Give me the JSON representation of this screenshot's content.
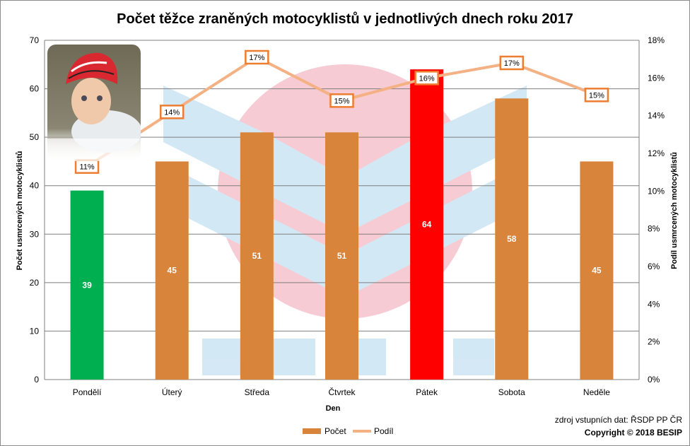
{
  "chart_data": {
    "type": "bar",
    "title": "Počet těžce zraněných motocyklistů v jednotlivých dnech roku 2017",
    "xlabel": "Den",
    "ylabel": "Počet usmrcených motocyklistů",
    "y2label": "Podíl usmrcených motocyklistů",
    "ylim": [
      0,
      70
    ],
    "yticks": [
      0,
      10,
      20,
      30,
      40,
      50,
      60,
      70
    ],
    "y2lim": [
      0,
      18
    ],
    "y2ticks": [
      "0%",
      "2%",
      "4%",
      "6%",
      "8%",
      "10%",
      "12%",
      "14%",
      "16%",
      "18%"
    ],
    "grid": true,
    "legend_position": "bottom",
    "categories": [
      "Pondělí",
      "Úterý",
      "Středa",
      "Čtvrtek",
      "Pátek",
      "Sobota",
      "Neděle"
    ],
    "series": [
      {
        "name": "Počet",
        "type": "bar",
        "axis": "left",
        "values": [
          39,
          45,
          51,
          51,
          64,
          58,
          45
        ],
        "labels": [
          "39",
          "45",
          "51",
          "51",
          "64",
          "58",
          "45"
        ],
        "color": "#d9843b",
        "point_colors": [
          "#00b050",
          "#d9843b",
          "#d9843b",
          "#d9843b",
          "#ff0000",
          "#d9843b",
          "#d9843b"
        ]
      },
      {
        "name": "Podíl",
        "type": "line",
        "axis": "right",
        "values": [
          11.3,
          14.2,
          17.1,
          14.8,
          16.0,
          16.8,
          15.1
        ],
        "labels": [
          "11%",
          "14%",
          "17%",
          "15%",
          "16%",
          "17%",
          "15%"
        ],
        "color": "#f4b183"
      }
    ]
  },
  "footer": {
    "source": "zdroj vstupních dat: ŘSDP PP ČR",
    "copyright": "Copyright © 2018 BESIP"
  },
  "colors": {
    "label_border": "#ed7d31",
    "gridline": "#7f7f7f",
    "watermark_red": "#f7c6cf",
    "watermark_blue": "#cfe6f4"
  },
  "images": {
    "photo": "child-with-red-helmet"
  }
}
